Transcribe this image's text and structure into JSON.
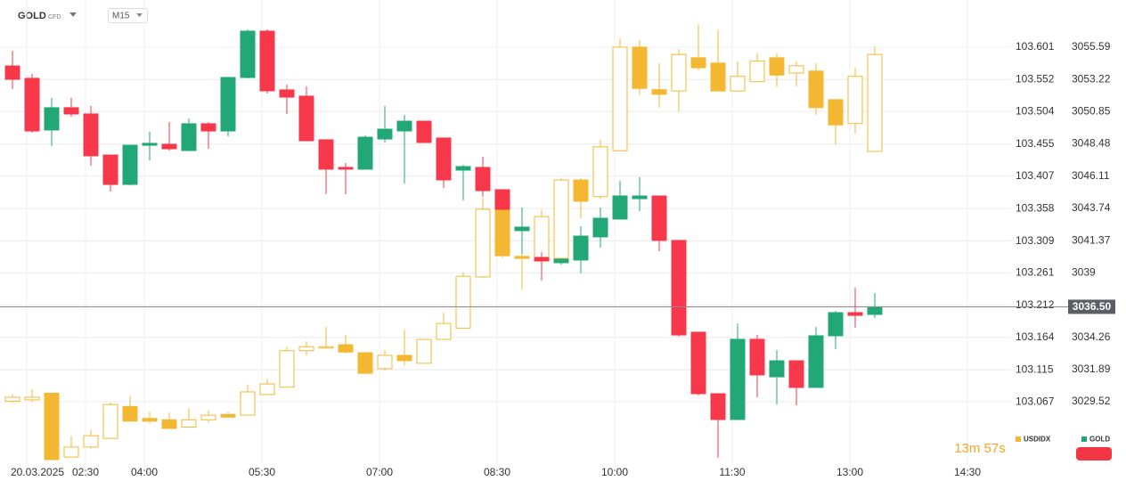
{
  "header": {
    "symbol": "GOLD",
    "instrument_type": "CFD",
    "timeframe": "M15"
  },
  "chart_data": {
    "type": "candlestick",
    "categories": [
      null,
      "20.03.2025",
      null,
      null,
      "02:30",
      null,
      null,
      "04:00",
      null,
      null,
      null,
      null,
      null,
      "05:30",
      null,
      null,
      null,
      null,
      null,
      "07:00",
      null,
      null,
      null,
      null,
      null,
      "08:30",
      null,
      null,
      null,
      null,
      null,
      "10:00",
      null,
      null,
      null,
      null,
      null,
      "11:30",
      null,
      null,
      null,
      null,
      null,
      "13:00",
      null,
      null,
      null,
      null,
      null,
      "14:30"
    ],
    "ylim": [
      102.972,
      103.672
    ],
    "yticks": [
      103.601,
      103.552,
      103.504,
      103.455,
      103.407,
      103.358,
      103.309,
      103.261,
      103.212,
      103.164,
      103.115,
      103.067
    ],
    "y2lim": [
      3024.87,
      3059.06
    ],
    "y2ticks": [
      3055.59,
      3053.22,
      3050.85,
      3048.48,
      3046.11,
      3043.74,
      3041.37,
      3039.0,
      3036.63,
      3034.26,
      3031.89,
      3029.52
    ],
    "grid": true,
    "current_price": {
      "value": 3036.5,
      "label": "3036.50"
    },
    "countdown": "13m 57s",
    "series": [
      {
        "name": "USDIDX",
        "color": "#f4b731",
        "axis": "y",
        "values": [
          [
            103.068,
            103.078,
            103.066,
            103.074
          ],
          [
            103.07,
            103.086,
            103.067,
            103.074
          ],
          [
            103.08,
            103.08,
            102.98,
            102.98
          ],
          [
            102.984,
            103.015,
            102.984,
            102.999
          ],
          [
            102.999,
            103.025,
            102.996,
            103.016
          ],
          [
            103.012,
            103.066,
            103.012,
            103.063
          ],
          [
            103.06,
            103.076,
            103.038,
            103.038
          ],
          [
            103.042,
            103.052,
            103.034,
            103.038
          ],
          [
            103.04,
            103.051,
            103.027,
            103.027
          ],
          [
            103.029,
            103.058,
            103.029,
            103.04
          ],
          [
            103.04,
            103.054,
            103.036,
            103.047
          ],
          [
            103.048,
            103.052,
            103.043,
            103.044
          ],
          [
            103.047,
            103.093,
            103.047,
            103.082
          ],
          [
            103.078,
            103.102,
            103.078,
            103.094
          ],
          [
            103.089,
            103.15,
            103.089,
            103.144
          ],
          [
            103.144,
            103.158,
            103.137,
            103.15
          ],
          [
            103.148,
            103.18,
            103.148,
            103.15
          ],
          [
            103.153,
            103.168,
            103.14,
            103.142
          ],
          [
            103.141,
            103.142,
            103.109,
            103.11
          ],
          [
            103.117,
            103.145,
            103.114,
            103.137
          ],
          [
            103.137,
            103.176,
            103.122,
            103.129
          ],
          [
            103.125,
            103.161,
            103.125,
            103.161
          ],
          [
            103.161,
            103.201,
            103.16,
            103.185
          ],
          [
            103.178,
            103.262,
            103.178,
            103.256
          ],
          [
            103.255,
            103.374,
            103.254,
            103.357
          ],
          [
            103.357,
            103.36,
            103.284,
            103.287
          ],
          [
            103.286,
            103.341,
            103.236,
            103.283
          ],
          [
            103.283,
            103.356,
            103.276,
            103.346
          ],
          [
            103.283,
            103.404,
            103.278,
            103.401
          ],
          [
            103.401,
            103.404,
            103.343,
            103.369
          ],
          [
            103.376,
            103.462,
            103.373,
            103.451
          ],
          [
            103.445,
            103.614,
            103.445,
            103.601
          ],
          [
            103.601,
            103.612,
            103.53,
            103.539
          ],
          [
            103.537,
            103.577,
            103.51,
            103.53
          ],
          [
            103.535,
            103.598,
            103.504,
            103.59
          ],
          [
            103.585,
            103.635,
            103.566,
            103.57
          ],
          [
            103.577,
            103.627,
            103.535,
            103.535
          ],
          [
            103.535,
            103.58,
            103.535,
            103.557
          ],
          [
            103.549,
            103.592,
            103.549,
            103.58
          ],
          [
            103.585,
            103.592,
            103.541,
            103.559
          ],
          [
            103.562,
            103.58,
            103.542,
            103.573
          ],
          [
            103.565,
            103.577,
            103.499,
            103.51
          ],
          [
            103.522,
            103.522,
            103.455,
            103.484
          ],
          [
            103.486,
            103.57,
            103.471,
            103.557
          ],
          [
            103.444,
            103.602,
            103.444,
            103.59
          ],
          null,
          null,
          null,
          null,
          null
        ]
      },
      {
        "name": "GOLD",
        "color": "#22a877",
        "down_color": "#f7374a",
        "axis": "y2",
        "values": [
          [
            3054.21,
            3055.33,
            3052.51,
            3053.23
          ],
          [
            3053.3,
            3053.62,
            3049.3,
            3049.43
          ],
          [
            3049.5,
            3051.86,
            3048.32,
            3051.14
          ],
          [
            3051.14,
            3051.86,
            3050.48,
            3050.68
          ],
          [
            3050.68,
            3051.27,
            3046.88,
            3047.6
          ],
          [
            3047.66,
            3047.66,
            3044.98,
            3045.5
          ],
          [
            3045.5,
            3048.38,
            3045.44,
            3048.38
          ],
          [
            3048.38,
            3049.37,
            3047.27,
            3048.52
          ],
          [
            3048.45,
            3050.09,
            3047.99,
            3048.12
          ],
          [
            3047.99,
            3050.35,
            3047.99,
            3049.96
          ],
          [
            3049.96,
            3050.09,
            3048.12,
            3049.43
          ],
          [
            3049.43,
            3053.43,
            3049.04,
            3053.36
          ],
          [
            3053.36,
            3056.9,
            3053.3,
            3056.77
          ],
          [
            3056.77,
            3056.9,
            3052.18,
            3052.38
          ],
          [
            3052.45,
            3052.84,
            3050.68,
            3051.92
          ],
          [
            3051.99,
            3052.71,
            3048.71,
            3048.71
          ],
          [
            3048.78,
            3048.78,
            3044.78,
            3046.62
          ],
          [
            3046.75,
            3047.07,
            3044.78,
            3046.62
          ],
          [
            3046.62,
            3049.11,
            3046.62,
            3048.97
          ],
          [
            3048.84,
            3051.27,
            3048.58,
            3049.56
          ],
          [
            3049.43,
            3050.61,
            3045.57,
            3050.15
          ],
          [
            3050.15,
            3050.15,
            3048.58,
            3048.58
          ],
          [
            3048.91,
            3048.91,
            3045.24,
            3045.83
          ],
          [
            3046.55,
            3046.94,
            3044.32,
            3046.81
          ],
          [
            3046.75,
            3047.53,
            3044.59,
            3045.04
          ],
          [
            3045.11,
            3045.11,
            3043.6,
            3043.67
          ],
          [
            3042.1,
            3043.8,
            3040.39,
            3042.36
          ],
          [
            3040.13,
            3040.52,
            3038.43,
            3039.87
          ],
          [
            3039.74,
            3040.07,
            3039.61,
            3040.0
          ],
          [
            3039.94,
            3042.42,
            3038.95,
            3041.7
          ],
          [
            3041.64,
            3043.8,
            3040.85,
            3043.01
          ],
          [
            3042.95,
            3045.76,
            3042.95,
            3044.65
          ],
          [
            3044.45,
            3046.03,
            3043.54,
            3044.65
          ],
          [
            3044.65,
            3044.65,
            3040.59,
            3041.38
          ],
          [
            3041.38,
            3041.38,
            3034.3,
            3034.43
          ],
          [
            3034.63,
            3034.63,
            3029.98,
            3030.11
          ],
          [
            3030.11,
            3030.11,
            3025.39,
            3028.21
          ],
          [
            3028.21,
            3035.28,
            3028.21,
            3034.11
          ],
          [
            3034.11,
            3034.43,
            3029.85,
            3031.49
          ],
          [
            3031.35,
            3033.32,
            3029.32,
            3032.53
          ],
          [
            3032.53,
            3032.53,
            3029.26,
            3030.57
          ],
          [
            3030.57,
            3035.02,
            3030.57,
            3034.37
          ],
          [
            3034.37,
            3036.2,
            3033.39,
            3036.07
          ],
          [
            3036.07,
            3037.9,
            3034.96,
            3035.87
          ],
          [
            3035.94,
            3037.51,
            3035.68,
            3036.5
          ],
          null,
          null,
          null,
          null,
          null
        ]
      }
    ]
  }
}
